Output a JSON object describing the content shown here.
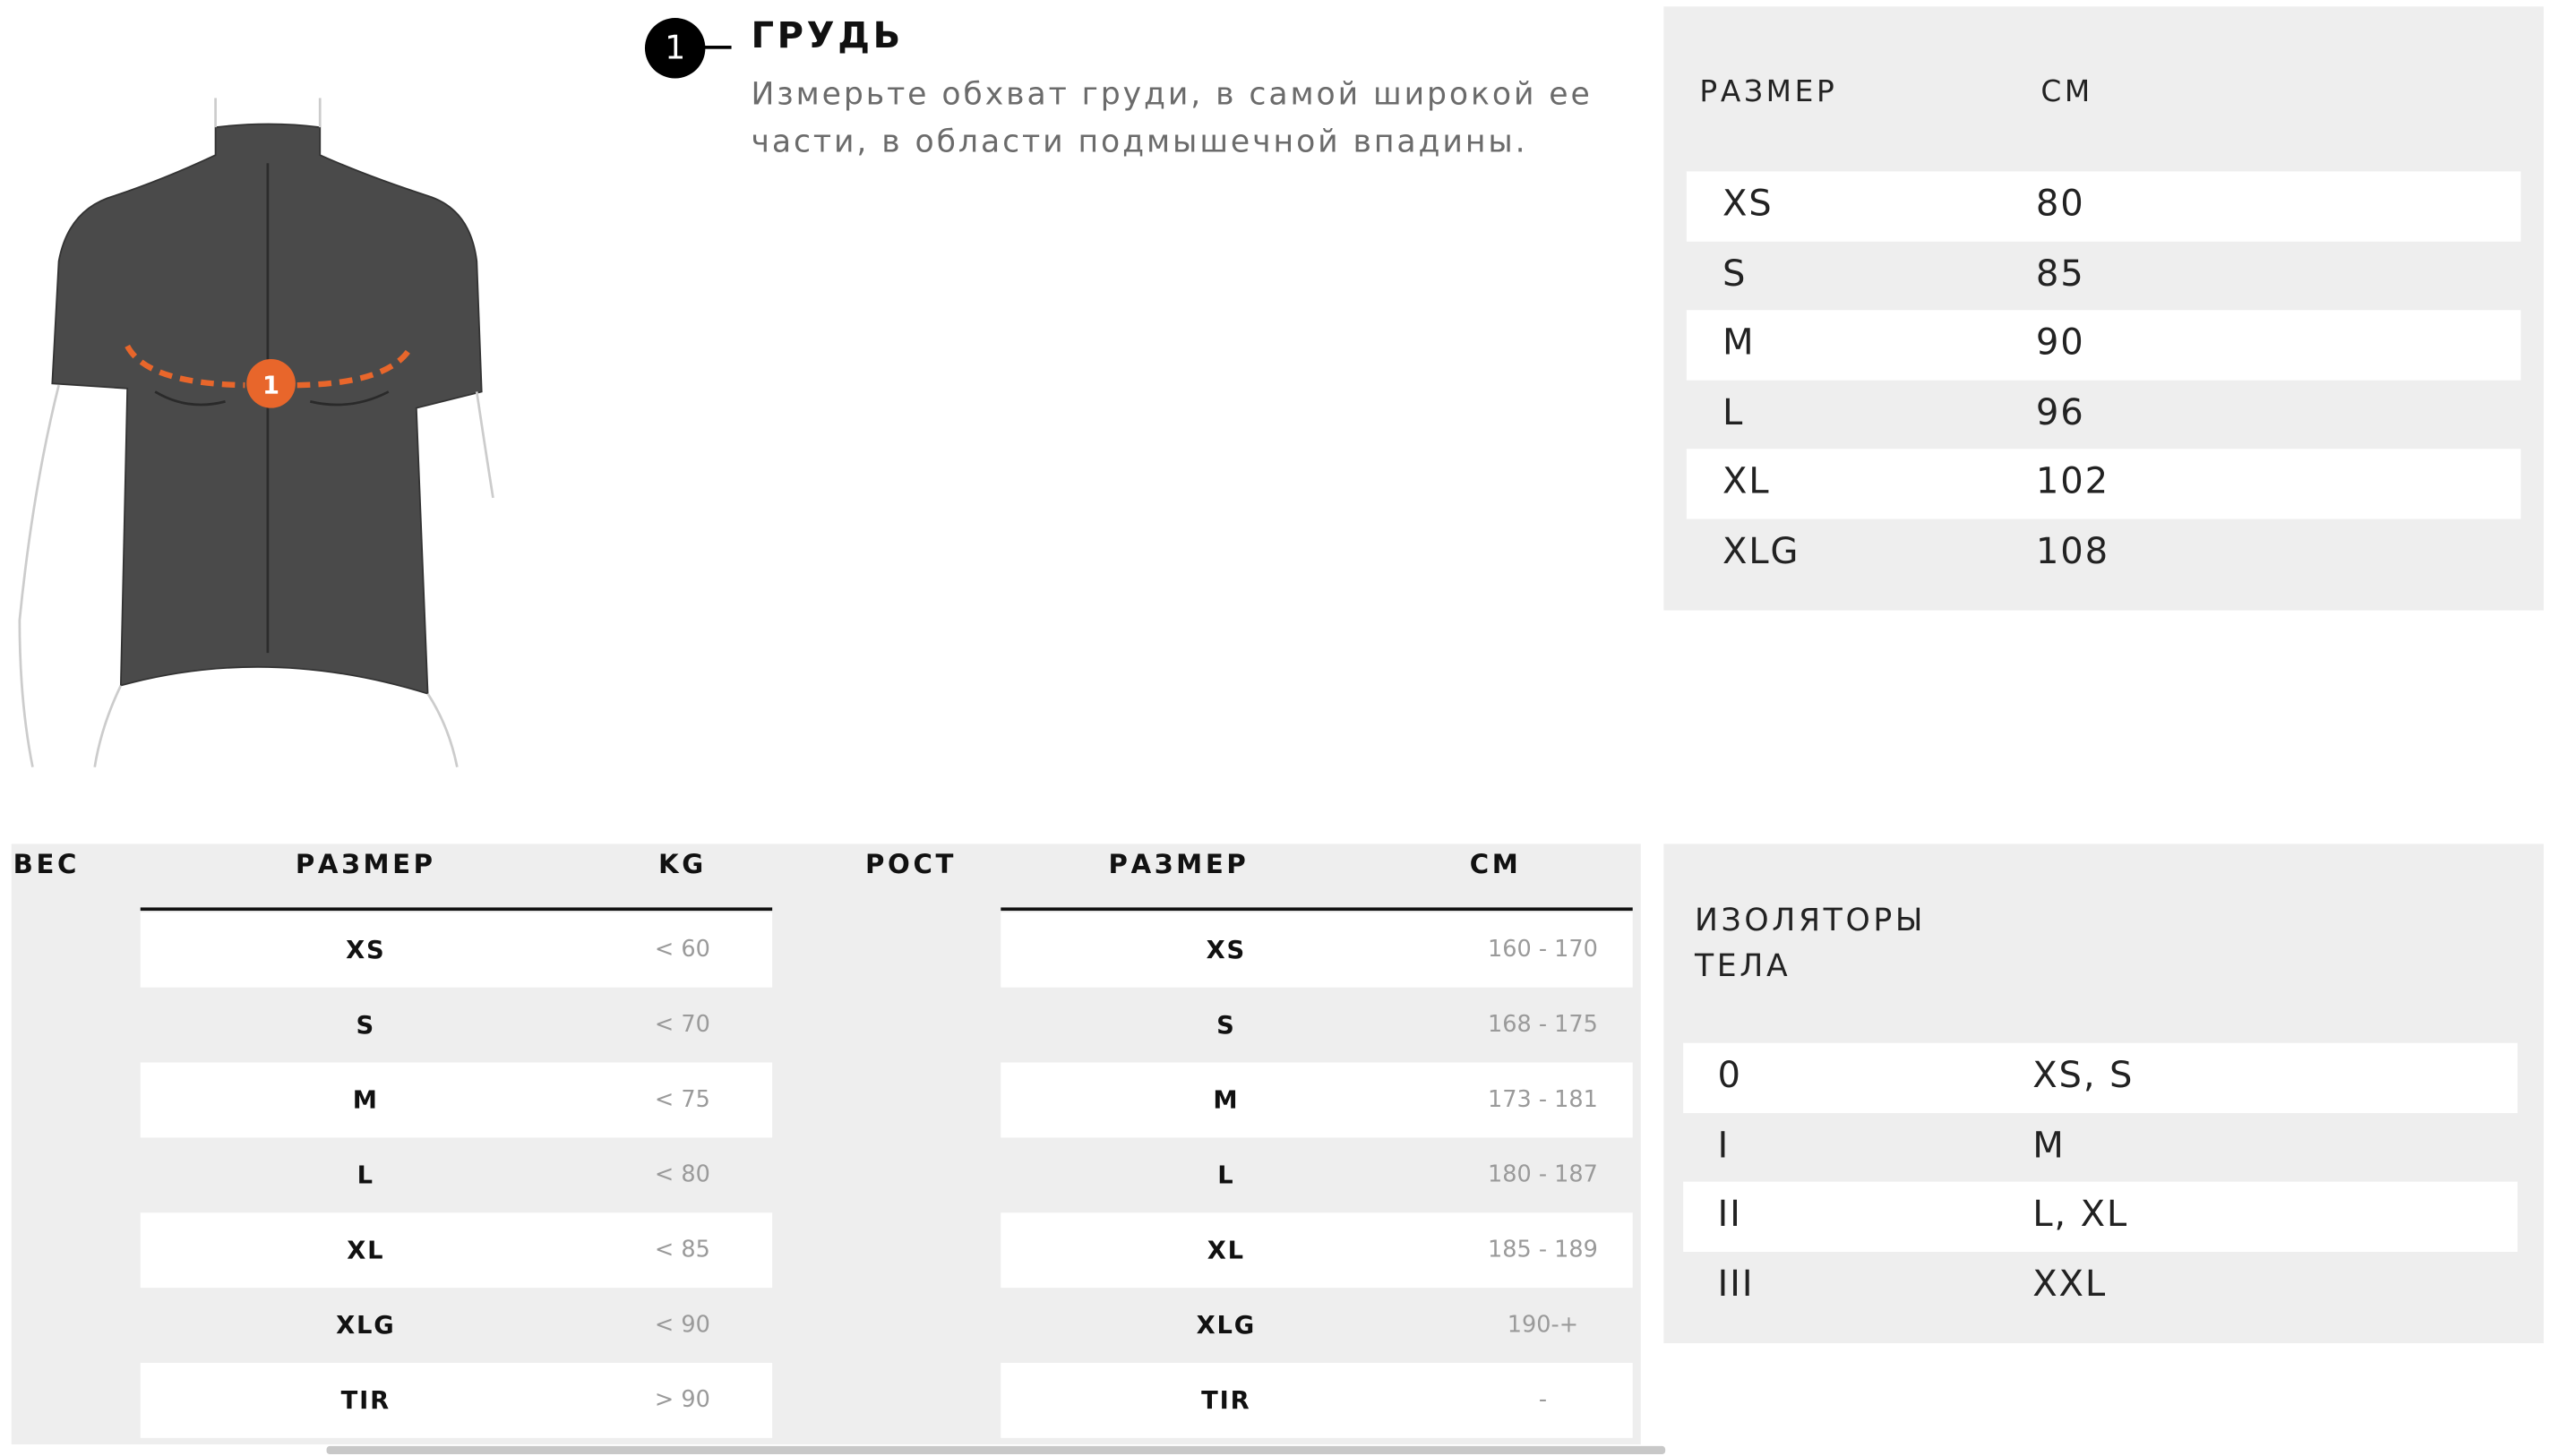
{
  "measure": {
    "step": "1",
    "title": "ГРУДЬ",
    "description": "Измерьте обхват груди, в самой широкой ее части, в области подмышечной впадины."
  },
  "chest_table": {
    "headers": [
      "РАЗМЕР",
      "СМ"
    ],
    "rows": [
      {
        "size": "XS",
        "cm": "80"
      },
      {
        "size": "S",
        "cm": "85"
      },
      {
        "size": "M",
        "cm": "90"
      },
      {
        "size": "L",
        "cm": "96"
      },
      {
        "size": "XL",
        "cm": "102"
      },
      {
        "size": "XLG",
        "cm": "108"
      }
    ]
  },
  "weight_table": {
    "label": "ВЕС",
    "headers": [
      "РАЗМЕР",
      "KG"
    ],
    "rows": [
      {
        "size": "XS",
        "value": "< 60"
      },
      {
        "size": "S",
        "value": "< 70"
      },
      {
        "size": "M",
        "value": "< 75"
      },
      {
        "size": "L",
        "value": "< 80"
      },
      {
        "size": "XL",
        "value": "< 85"
      },
      {
        "size": "XLG",
        "value": "< 90"
      },
      {
        "size": "TIR",
        "value": "> 90"
      }
    ]
  },
  "height_table": {
    "label": "РОСТ",
    "headers": [
      "РАЗМЕР",
      "СМ"
    ],
    "rows": [
      {
        "size": "XS",
        "value": "160 - 170"
      },
      {
        "size": "S",
        "value": "168 - 175"
      },
      {
        "size": "M",
        "value": "173 - 181"
      },
      {
        "size": "L",
        "value": "180 - 187"
      },
      {
        "size": "XL",
        "value": "185 - 189"
      },
      {
        "size": "XLG",
        "value": "190-+"
      },
      {
        "size": "TIR",
        "value": "-"
      }
    ]
  },
  "insulators_table": {
    "title_line1": "ИЗОЛЯТОРЫ",
    "title_line2": "ТЕЛА",
    "rows": [
      {
        "level": "0",
        "sizes": "XS, S"
      },
      {
        "level": "I",
        "sizes": "M"
      },
      {
        "level": "II",
        "sizes": "L, XL"
      },
      {
        "level": "III",
        "sizes": "XXL"
      }
    ]
  },
  "colors": {
    "accent": "#e8662b",
    "panel": "#eeeeee",
    "jersey": "#4a4a4a"
  }
}
